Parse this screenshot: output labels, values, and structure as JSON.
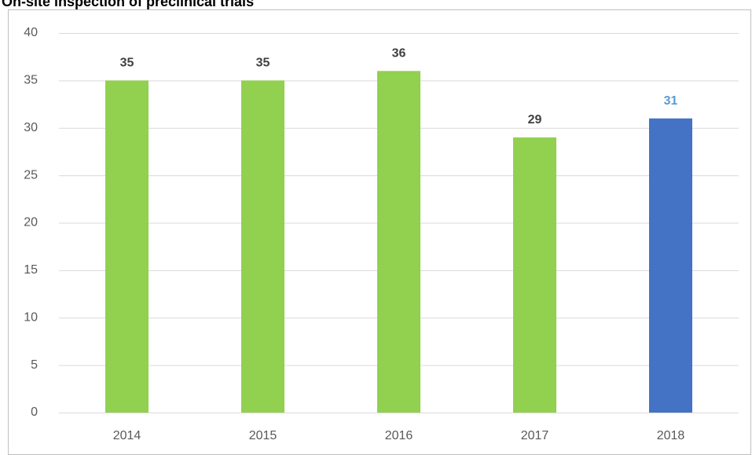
{
  "chart_data": {
    "type": "bar",
    "title": "On-site inspection of preclinical trials",
    "categories": [
      "2014",
      "2015",
      "2016",
      "2017",
      "2018"
    ],
    "values": [
      35,
      35,
      36,
      29,
      31
    ],
    "colors": [
      "#92d050",
      "#92d050",
      "#92d050",
      "#92d050",
      "#4472c4"
    ],
    "label_colors": [
      "#404040",
      "#404040",
      "#404040",
      "#404040",
      "#5b9bd5"
    ],
    "ylim": [
      0,
      40
    ],
    "yticks": [
      0,
      5,
      10,
      15,
      20,
      25,
      30,
      35,
      40
    ],
    "grid": true
  }
}
